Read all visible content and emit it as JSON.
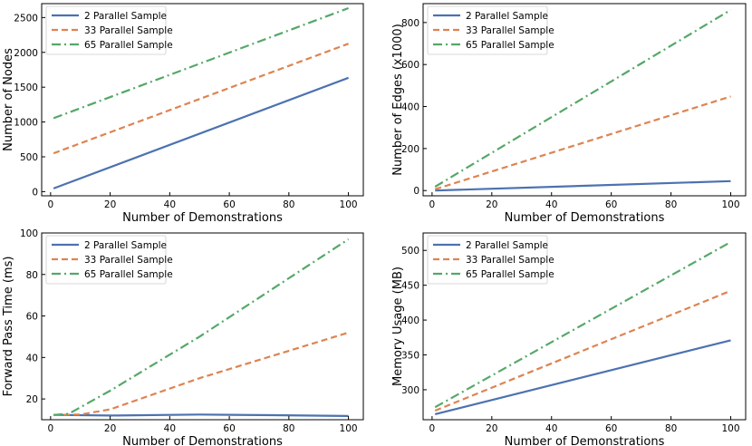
{
  "colors": {
    "blue": "#4c72b0",
    "orange": "#dd8452",
    "green": "#55a868"
  },
  "chart_data": [
    {
      "type": "line",
      "xlabel": "Number of Demonstrations",
      "ylabel": "Number of Nodes",
      "xlim": [
        -3,
        105
      ],
      "ylim": [
        -60,
        2700
      ],
      "xticks": [
        0,
        20,
        40,
        60,
        80,
        100
      ],
      "yticks": [
        0,
        500,
        1000,
        1500,
        2000,
        2500
      ],
      "legend": "top-left",
      "series": [
        {
          "name": "2 Parallel Sample",
          "style": "solid",
          "color": "#4c72b0",
          "x": [
            1,
            100
          ],
          "y": [
            45,
            1635
          ]
        },
        {
          "name": "33 Parallel Sample",
          "style": "dashed",
          "color": "#dd8452",
          "x": [
            1,
            100
          ],
          "y": [
            550,
            2125
          ]
        },
        {
          "name": "65 Parallel Sample",
          "style": "dashdot",
          "color": "#55a868",
          "x": [
            1,
            100
          ],
          "y": [
            1055,
            2635
          ]
        }
      ]
    },
    {
      "type": "line",
      "xlabel": "Number of Demonstrations",
      "ylabel": "Number of Edges (x1000)",
      "xlim": [
        -3,
        105
      ],
      "ylim": [
        -25,
        890
      ],
      "xticks": [
        0,
        20,
        40,
        60,
        80,
        100
      ],
      "yticks": [
        0,
        200,
        400,
        600,
        800
      ],
      "legend": "top-left",
      "series": [
        {
          "name": "2 Parallel Sample",
          "style": "solid",
          "color": "#4c72b0",
          "x": [
            1,
            100
          ],
          "y": [
            0,
            45
          ]
        },
        {
          "name": "33 Parallel Sample",
          "style": "dashed",
          "color": "#dd8452",
          "x": [
            1,
            100
          ],
          "y": [
            6,
            448
          ]
        },
        {
          "name": "65 Parallel Sample",
          "style": "dashdot",
          "color": "#55a868",
          "x": [
            1,
            100
          ],
          "y": [
            18,
            860
          ]
        }
      ]
    },
    {
      "type": "line",
      "xlabel": "Number of Demonstrations",
      "ylabel": "Forward Pass Time (ms)",
      "xlim": [
        -3,
        105
      ],
      "ylim": [
        10,
        100
      ],
      "xticks": [
        0,
        20,
        40,
        60,
        80,
        100
      ],
      "yticks": [
        20,
        40,
        60,
        80,
        100
      ],
      "legend": "top-left",
      "series": [
        {
          "name": "2 Parallel Sample",
          "style": "solid",
          "color": "#4c72b0",
          "x": [
            1,
            20,
            50,
            75,
            100
          ],
          "y": [
            12.3,
            12.0,
            12.5,
            12.2,
            11.8
          ]
        },
        {
          "name": "33 Parallel Sample",
          "style": "dashed",
          "color": "#dd8452",
          "x": [
            1,
            10,
            20,
            50,
            100
          ],
          "y": [
            12.3,
            12.5,
            15,
            30,
            52
          ]
        },
        {
          "name": "65 Parallel Sample",
          "style": "dashdot",
          "color": "#55a868",
          "x": [
            1,
            6,
            20,
            50,
            100
          ],
          "y": [
            12.3,
            12.8,
            24,
            50,
            97
          ]
        }
      ]
    },
    {
      "type": "line",
      "xlabel": "Number of Demonstrations",
      "ylabel": "Memory Usage (MB)",
      "xlim": [
        -3,
        105
      ],
      "ylim": [
        257,
        525
      ],
      "xticks": [
        0,
        20,
        40,
        60,
        80,
        100
      ],
      "yticks": [
        300,
        350,
        400,
        450,
        500
      ],
      "legend": "top-left",
      "series": [
        {
          "name": "2 Parallel Sample",
          "style": "solid",
          "color": "#4c72b0",
          "x": [
            1,
            100
          ],
          "y": [
            265,
            371
          ]
        },
        {
          "name": "33 Parallel Sample",
          "style": "dashed",
          "color": "#dd8452",
          "x": [
            1,
            100
          ],
          "y": [
            270,
            442
          ]
        },
        {
          "name": "65 Parallel Sample",
          "style": "dashdot",
          "color": "#55a868",
          "x": [
            1,
            100
          ],
          "y": [
            275,
            512
          ]
        }
      ]
    }
  ]
}
